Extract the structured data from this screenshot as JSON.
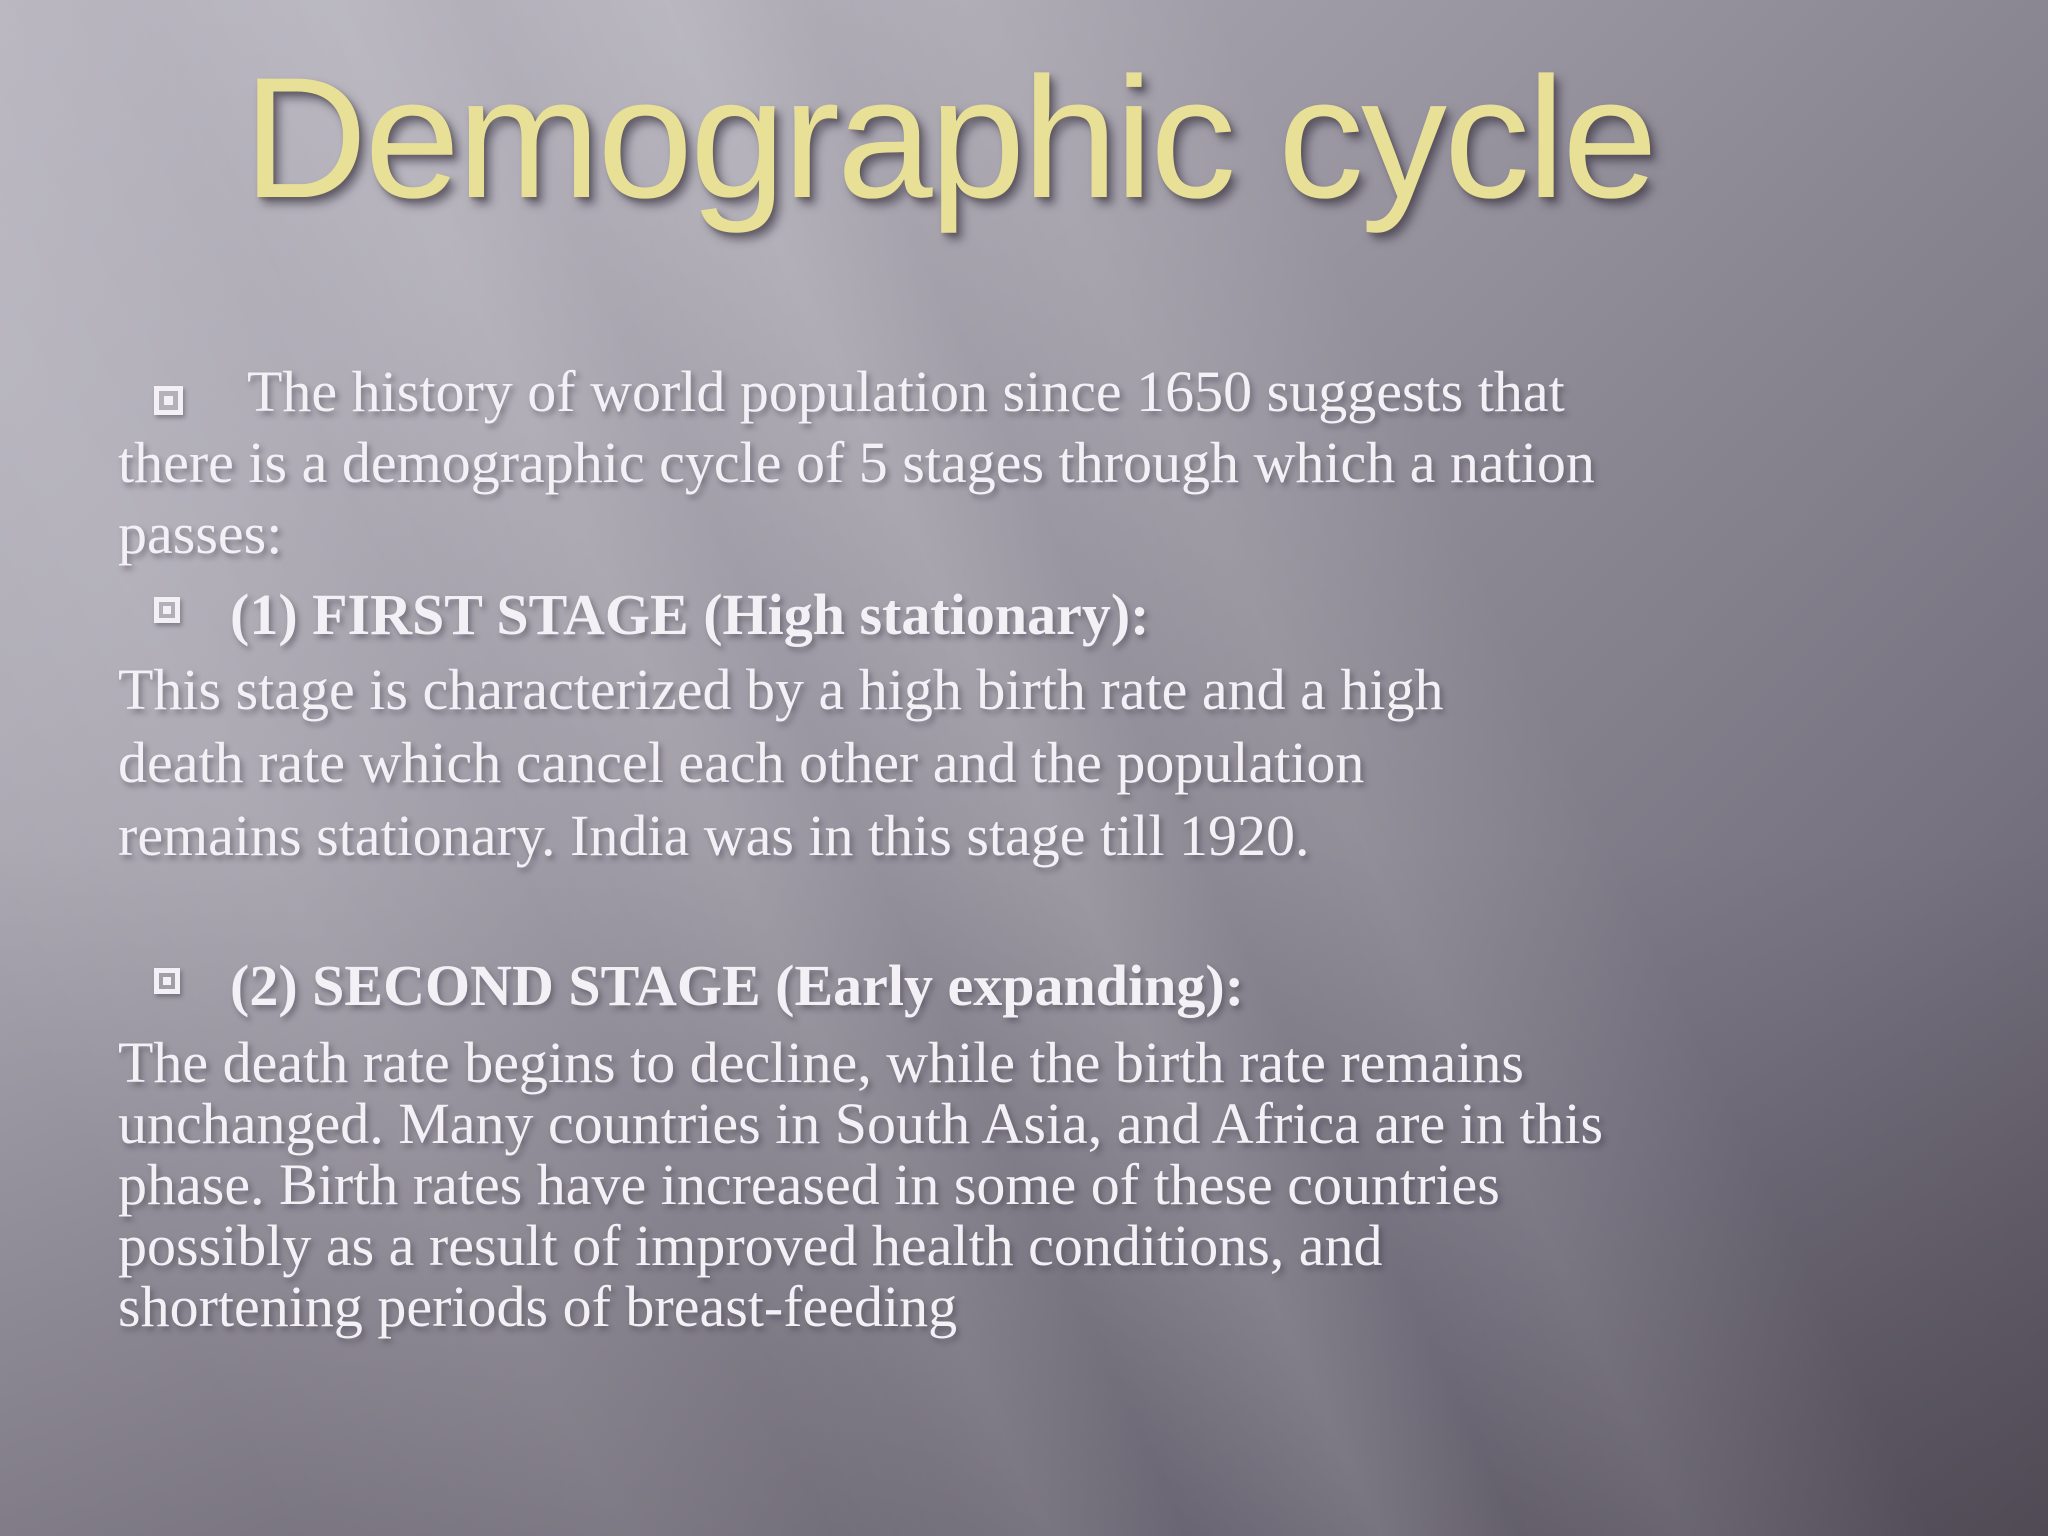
{
  "slide": {
    "title": "Demographic cycle",
    "intro": {
      "lines": [
        "The history of world population since 1650 suggests that",
        "there is a demographic cycle of 5 stages through which a nation",
        "passes:"
      ]
    },
    "sections": [
      {
        "heading": "(1) FIRST STAGE (High stationary):",
        "body_lines": [
          "This stage is characterized by a high birth rate and a high",
          "death rate which cancel each other and the population",
          "remains stationary. India was in this stage till 1920."
        ]
      },
      {
        "heading": "(2) SECOND STAGE (Early expanding):",
        "body_lines": [
          "The death rate begins to decline, while the birth rate remains",
          "unchanged. Many countries in South Asia, and Africa are in this",
          "phase. Birth rates have increased in some of these countries",
          "possibly as a result of improved health conditions, and",
          "shortening periods of breast-feeding"
        ]
      }
    ],
    "icons": {
      "bullet": "square-in-square-bullet"
    },
    "colors": {
      "title_text": "#e9e098",
      "body_text": "#f3f1f6",
      "background_light": "#b6b3bd",
      "background_dark": "#5a555e"
    }
  }
}
